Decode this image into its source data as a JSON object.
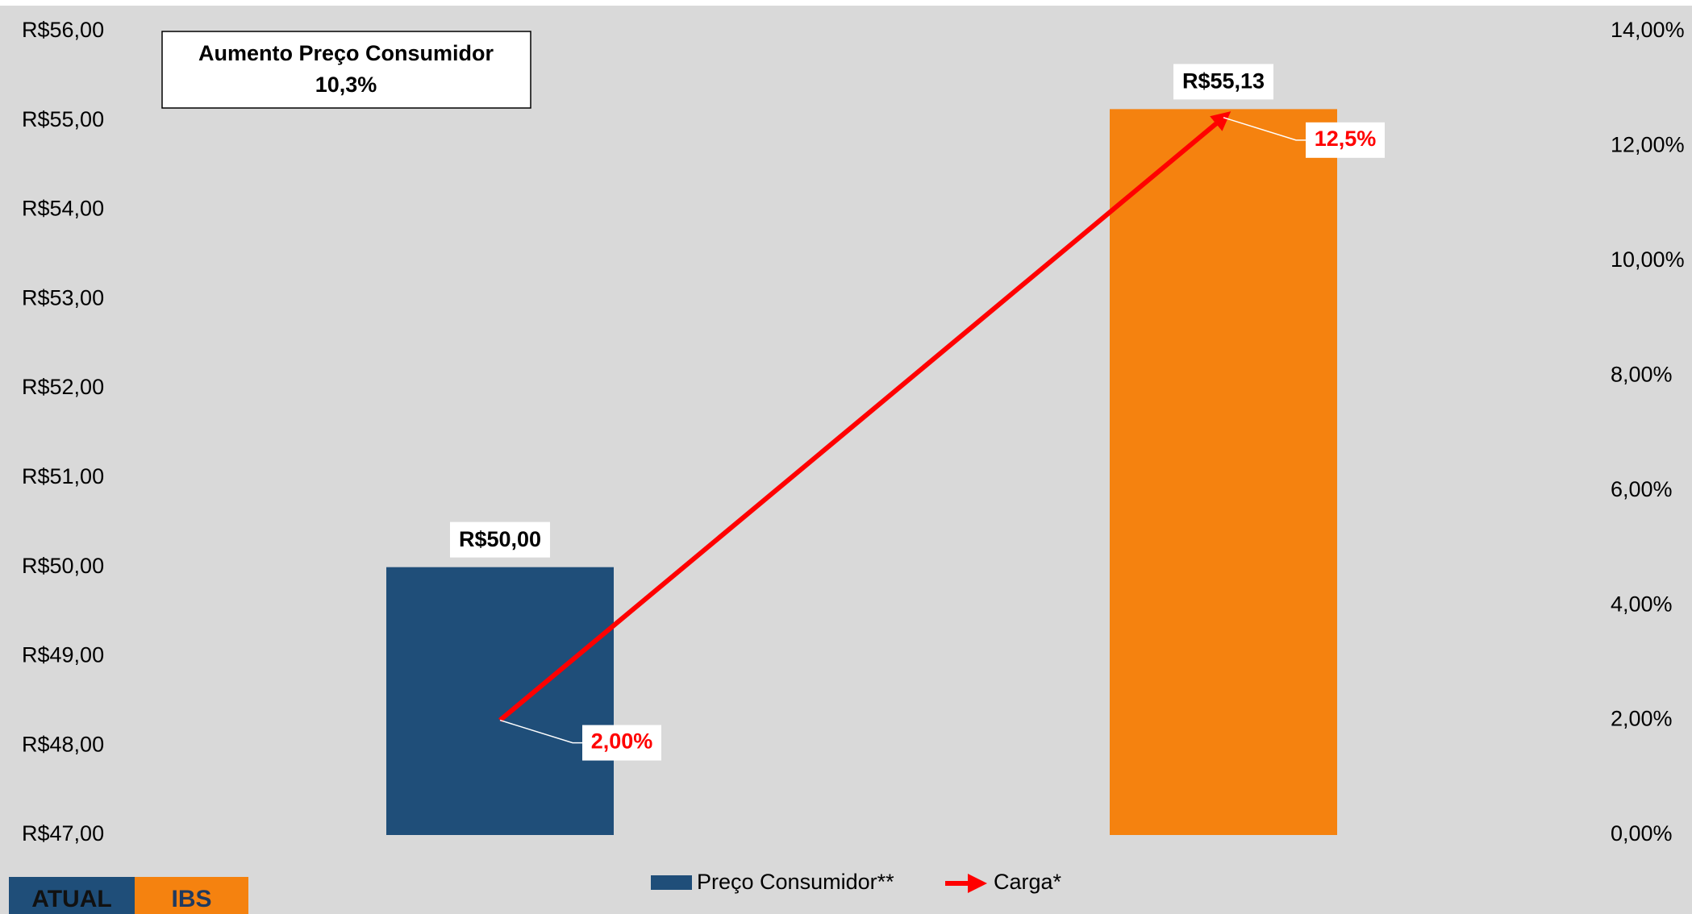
{
  "chart_data": {
    "type": "bar",
    "categories": [
      "ATUAL",
      "IBS"
    ],
    "annotation": {
      "title": "Aumento Preço Consumidor",
      "value": "10,3%"
    },
    "series": [
      {
        "name": "Preço Consumidor**",
        "type": "bar",
        "colors": [
          "#1f4e79",
          "#f5820f"
        ],
        "values": [
          50,
          55.13
        ],
        "value_labels": [
          "R$50,00",
          "R$55,13"
        ]
      },
      {
        "name": "Carga*",
        "type": "line",
        "axis": "y2",
        "color": "#ff0000",
        "values": [
          2,
          12.5
        ],
        "value_labels": [
          "2,00%",
          "12,5%"
        ]
      }
    ],
    "ylim": [
      47,
      56
    ],
    "yticks": [
      {
        "value": 47,
        "label": "R$47,00"
      },
      {
        "value": 48,
        "label": "R$48,00"
      },
      {
        "value": 49,
        "label": "R$49,00"
      },
      {
        "value": 50,
        "label": "R$50,00"
      },
      {
        "value": 51,
        "label": "R$51,00"
      },
      {
        "value": 52,
        "label": "R$52,00"
      },
      {
        "value": 53,
        "label": "R$53,00"
      },
      {
        "value": 54,
        "label": "R$54,00"
      },
      {
        "value": 55,
        "label": "R$55,00"
      },
      {
        "value": 56,
        "label": "R$56,00"
      }
    ],
    "y2lim": [
      0,
      14
    ],
    "y2ticks": [
      {
        "value": 0,
        "label": "0,00%"
      },
      {
        "value": 2,
        "label": "2,00%"
      },
      {
        "value": 4,
        "label": "4,00%"
      },
      {
        "value": 6,
        "label": "6,00%"
      },
      {
        "value": 8,
        "label": "8,00%"
      },
      {
        "value": 10,
        "label": "10,00%"
      },
      {
        "value": 12,
        "label": "12,00%"
      },
      {
        "value": 14,
        "label": "14,00%"
      }
    ],
    "grid": false
  }
}
